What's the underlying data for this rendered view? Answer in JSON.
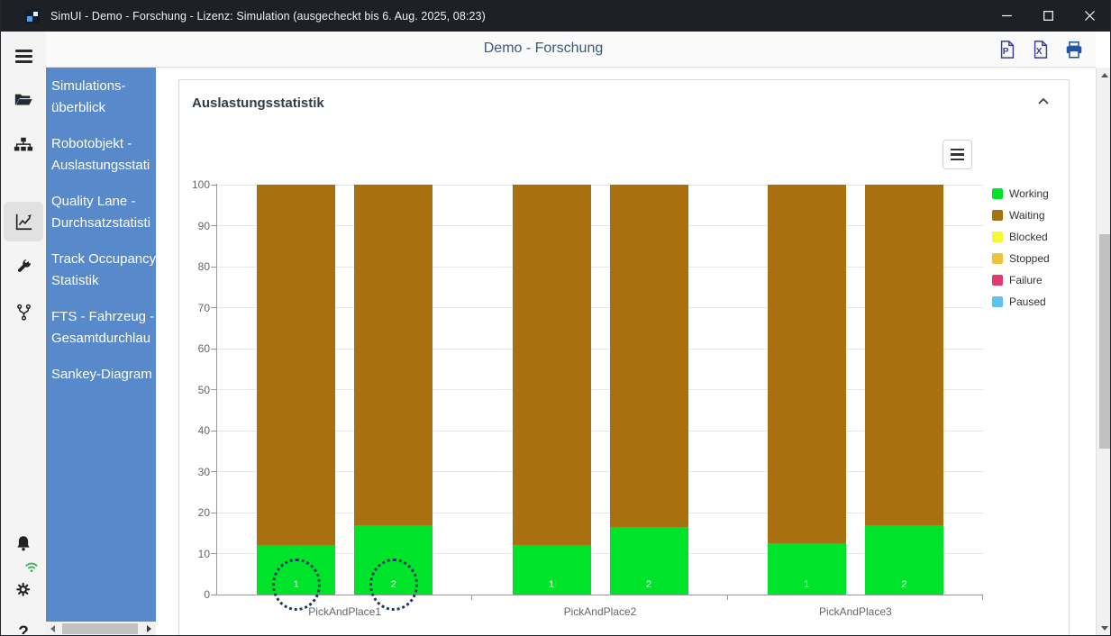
{
  "window": {
    "title": "SimUI - Demo - Forschung - Lizenz: Simulation (ausgecheckt bis 6. Aug. 2025, 08:23)"
  },
  "header": {
    "title": "Demo - Forschung",
    "actions": [
      {
        "name": "export-pdf",
        "glyph": "P"
      },
      {
        "name": "export-excel",
        "glyph": "X"
      },
      {
        "name": "print"
      }
    ]
  },
  "iconstrip": {
    "items": [
      "menu",
      "open-project",
      "object-hierarchy",
      "statistics",
      "tools",
      "version-branch"
    ],
    "active_item": "statistics",
    "bottom_items": [
      "notifications",
      "settings-with-connection",
      "help"
    ],
    "help_label": "?"
  },
  "sidebar": {
    "items": [
      {
        "label": "Simulations-überblick",
        "lines": [
          "Simulations-",
          "überblick"
        ]
      },
      {
        "label": "Robotobjekt - Auslastungsstati",
        "lines": [
          "Robotobjekt -",
          "Auslastungsstati"
        ]
      },
      {
        "label": "Quality Lane - Durchsatzstatisti",
        "lines": [
          "Quality Lane -",
          "Durchsatzstatisti"
        ]
      },
      {
        "label": "Track Occupancy Statistik",
        "lines": [
          "Track Occupancy",
          "Statistik"
        ]
      },
      {
        "label": "FTS - Fahrzeug - Gesamtdurchlau",
        "lines": [
          "FTS - Fahrzeug -",
          "Gesamtdurchlau"
        ]
      },
      {
        "label": "Sankey-Diagram",
        "lines": [
          "Sankey-Diagram"
        ]
      }
    ]
  },
  "panel": {
    "title": "Auslastungsstatistik",
    "collapse_icon": "chevron-up"
  },
  "chart_data": {
    "type": "bar",
    "stacked": true,
    "orientation": "vertical",
    "title": "",
    "categories": [
      "PickAndPlace1",
      "PickAndPlace2",
      "PickAndPlace3"
    ],
    "bars_per_category": 2,
    "bar_labels": [
      "1",
      "2"
    ],
    "series": [
      {
        "name": "Working",
        "color": "#00e32b",
        "values": [
          12,
          17,
          12,
          16.5,
          12.5,
          17
        ]
      },
      {
        "name": "Waiting",
        "color": "#a9700f",
        "values": [
          88,
          83,
          88,
          83.5,
          87.5,
          83
        ]
      },
      {
        "name": "Blocked",
        "color": "#f7f733",
        "values": [
          0,
          0,
          0,
          0,
          0,
          0
        ]
      },
      {
        "name": "Stopped",
        "color": "#f0c23a",
        "values": [
          0,
          0,
          0,
          0,
          0,
          0
        ]
      },
      {
        "name": "Failure",
        "color": "#e23a6f",
        "values": [
          0,
          0,
          0,
          0,
          0,
          0
        ]
      },
      {
        "name": "Paused",
        "color": "#5cc3f1",
        "values": [
          0,
          0,
          0,
          0,
          0,
          0
        ]
      }
    ],
    "ylim": [
      0,
      100
    ],
    "yticks": [
      0,
      10,
      20,
      30,
      40,
      50,
      60,
      70,
      80,
      90,
      100
    ],
    "grid": true,
    "legend_position": "right",
    "selected_bar_indices": [
      0,
      1
    ],
    "selection_color": "#1e3a5e",
    "axis_color": "#9a9a9a",
    "grid_color": "#e7e7e7",
    "label_color": "#666666"
  }
}
